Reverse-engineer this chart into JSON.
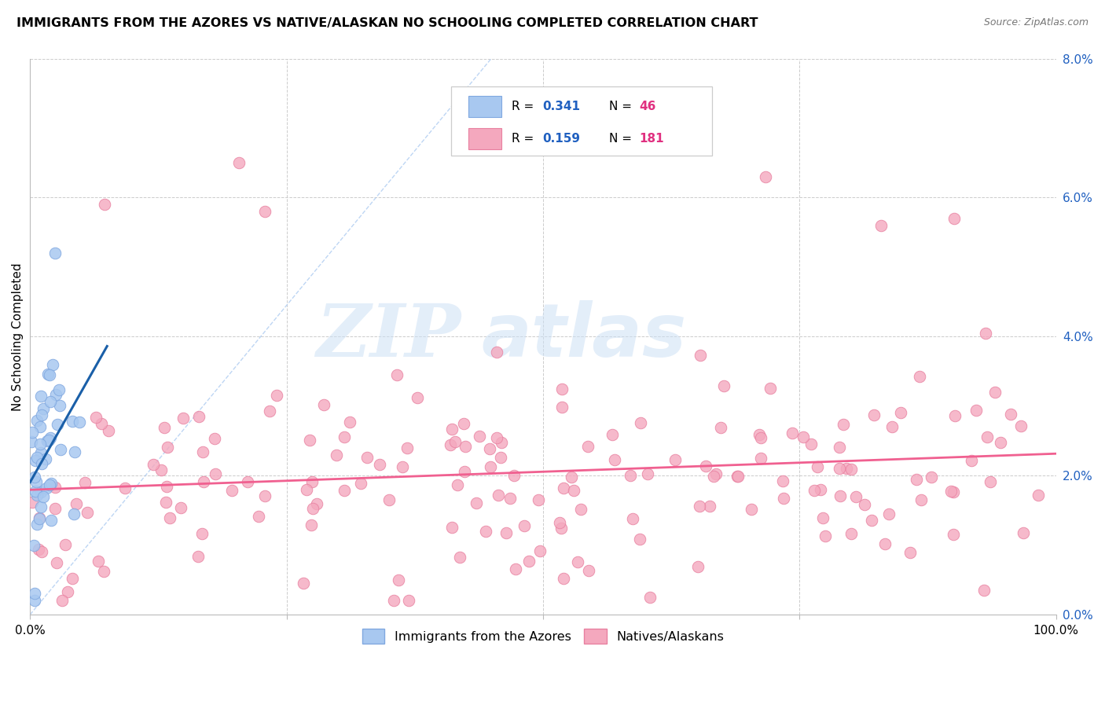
{
  "title": "IMMIGRANTS FROM THE AZORES VS NATIVE/ALASKAN NO SCHOOLING COMPLETED CORRELATION CHART",
  "source": "Source: ZipAtlas.com",
  "ylabel": "No Schooling Completed",
  "legend_labels": [
    "Immigrants from the Azores",
    "Natives/Alaskans"
  ],
  "blue_R": 0.341,
  "blue_N": 46,
  "pink_R": 0.159,
  "pink_N": 181,
  "blue_color": "#a8c8f0",
  "pink_color": "#f4a8be",
  "blue_line_color": "#1a5fa8",
  "pink_line_color": "#f06090",
  "blue_marker_edge": "#80a8e0",
  "pink_marker_edge": "#e880a0",
  "xlim": [
    0.0,
    1.0
  ],
  "ylim": [
    0.0,
    0.08
  ],
  "xtick_left": "0.0%",
  "xtick_right": "100.0%",
  "yticks_right": [
    0.0,
    0.02,
    0.04,
    0.06,
    0.08
  ],
  "ytick_labels_right": [
    "0.0%",
    "2.0%",
    "4.0%",
    "6.0%",
    "8.0%"
  ],
  "watermark_zip": "ZIP",
  "watermark_atlas": "atlas",
  "legend_R_color": "#2060c0",
  "legend_N_color": "#e03080",
  "blue_seed": 42,
  "pink_seed": 7,
  "dashed_line_color": "#a8c8f0",
  "title_fontsize": 11.5,
  "source_fontsize": 9
}
